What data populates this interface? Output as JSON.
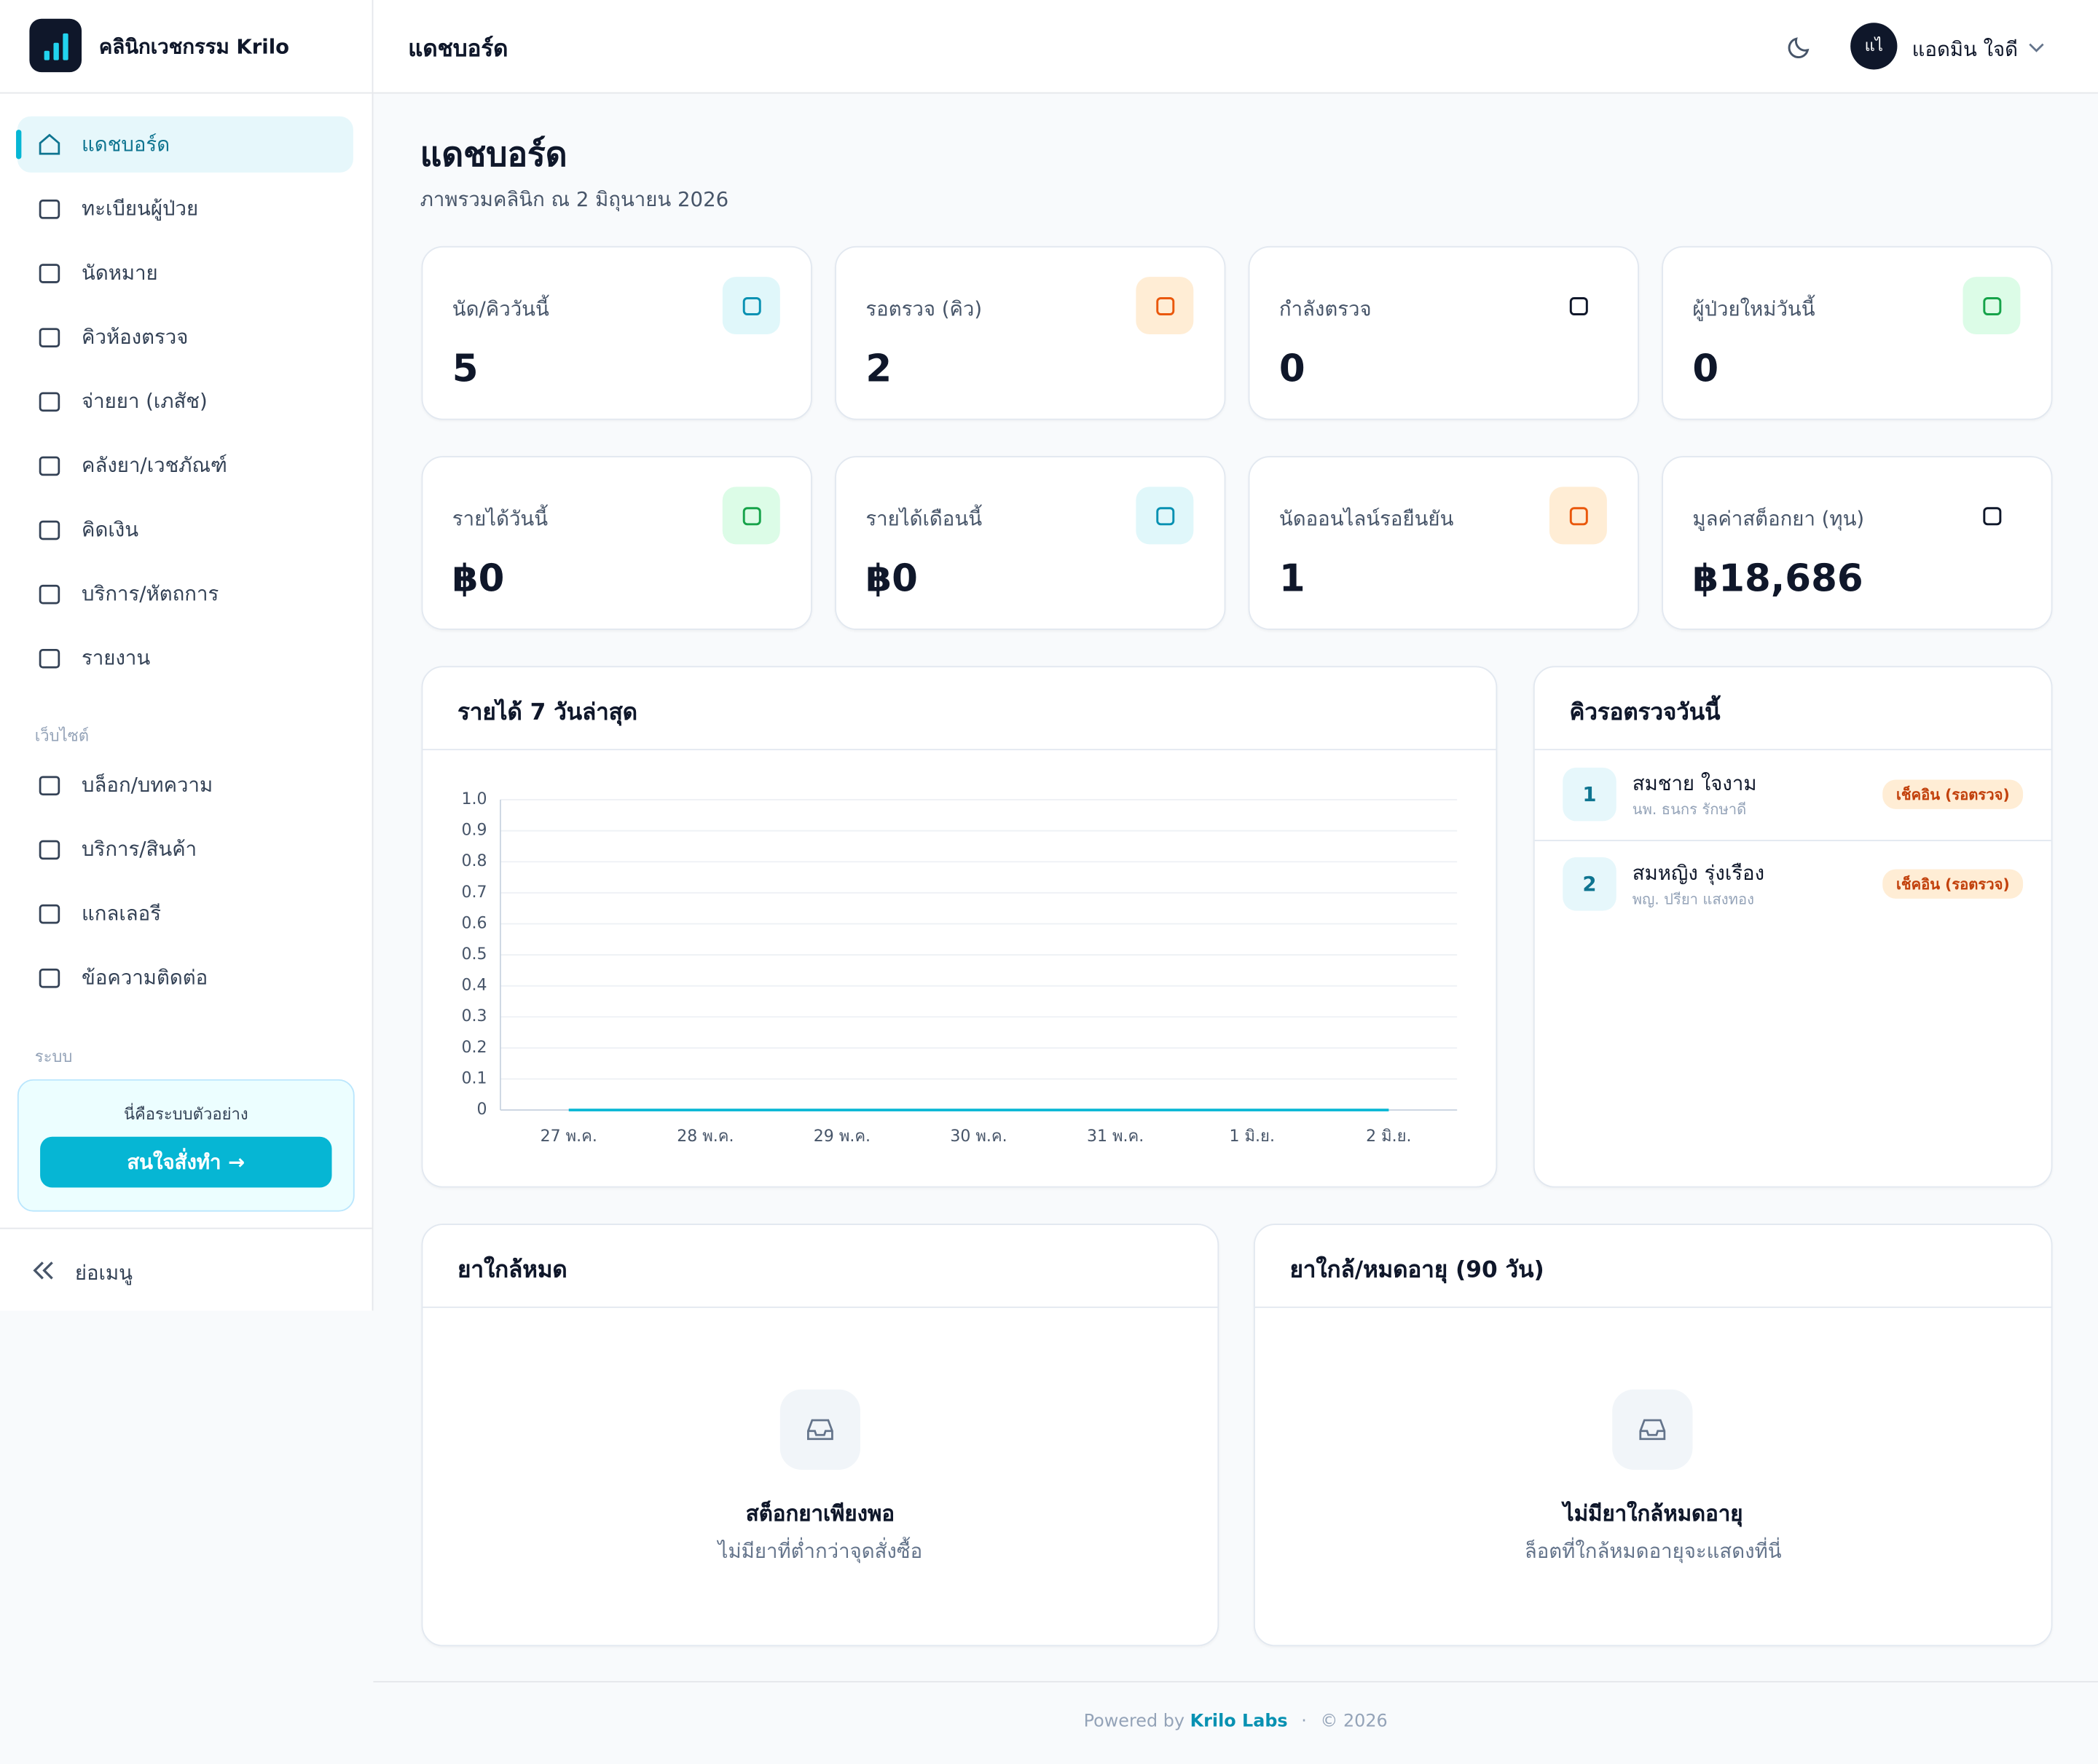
{
  "sidebar": {
    "brand": "คลินิกเวชกรรม Krilo",
    "menu": [
      "แดชบอร์ด",
      "ทะเบียนผู้ป่วย",
      "นัดหมาย",
      "คิวห้องตรวจ",
      "จ่ายยา (เภสัช)",
      "คลังยา/เวชภัณฑ์",
      "คิดเงิน",
      "บริการ/หัตถการ",
      "รายงาน"
    ],
    "website_section": "เว็บไซต์",
    "website_menu": [
      "บล็อก/บทความ",
      "บริการ/สินค้า",
      "แกลเลอรี",
      "ข้อความติดต่อ"
    ],
    "system_section": "ระบบ",
    "demo_text": "นี่คือระบบตัวอย่าง",
    "demo_button": "สนใจสั่งทำ →",
    "collapse": "ย่อเมนู"
  },
  "header": {
    "title": "แดชบอร์ด",
    "avatar": "แไ",
    "user": "แอดมิน ใจดี"
  },
  "page": {
    "title": "แดชบอร์ด",
    "subtitle": "ภาพรวมคลินิก ณ 2 มิถุนายน 2026"
  },
  "stats": [
    {
      "label": "นัด/คิววันนี้",
      "value": "5"
    },
    {
      "label": "รอตรวจ (คิว)",
      "value": "2"
    },
    {
      "label": "กำลังตรวจ",
      "value": "0"
    },
    {
      "label": "ผู้ป่วยใหม่วันนี้",
      "value": "0"
    },
    {
      "label": "รายได้วันนี้",
      "value": "฿0"
    },
    {
      "label": "รายได้เดือนนี้",
      "value": "฿0"
    },
    {
      "label": "นัดออนไลน์รอยืนยัน",
      "value": "1"
    },
    {
      "label": "มูลค่าสต็อกยา (ทุน)",
      "value": "฿18,686"
    }
  ],
  "chart_data": {
    "type": "line",
    "title": "รายได้ 7 วันล่าสุด",
    "categories": [
      "27 พ.ค.",
      "28 พ.ค.",
      "29 พ.ค.",
      "30 พ.ค.",
      "31 พ.ค.",
      "1 มิ.ย.",
      "2 มิ.ย."
    ],
    "values": [
      0,
      0,
      0,
      0,
      0,
      0,
      0
    ],
    "color": "#06b6d4",
    "ylim": [
      0,
      1
    ],
    "yticks": [
      0,
      0.1,
      0.2,
      0.3,
      0.4,
      0.5,
      0.6,
      0.7,
      0.8,
      0.9,
      {
        "value": 1,
        "label": "1.0"
      }
    ],
    "grid": true
  },
  "queue": {
    "title": "คิวรอตรวจวันนี้",
    "items": [
      {
        "number": "1",
        "name": "สมชาย ใจงาม",
        "doctor": "นพ. ธนกร รักษาดี",
        "status": "เช็คอิน (รอตรวจ)"
      },
      {
        "number": "2",
        "name": "สมหญิง รุ่งเรือง",
        "doctor": "พญ. ปรียา แสงทอง",
        "status": "เช็คอิน (รอตรวจ)"
      }
    ]
  },
  "low_stock": {
    "title": "ยาใกล้หมด",
    "empty_title": "สต็อกยาเพียงพอ",
    "empty_text": "ไม่มียาที่ต่ำกว่าจุดสั่งซื้อ"
  },
  "expiring": {
    "title": "ยาใกล้/หมดอายุ (90 วัน)",
    "empty_title": "ไม่มียาใกล้หมดอายุ",
    "empty_text": "ล็อตที่ใกล้หมดอายุจะแสดงที่นี่"
  },
  "footer": {
    "powered": "Powered by",
    "brand": "Krilo Labs",
    "copyright": "© 2026"
  }
}
